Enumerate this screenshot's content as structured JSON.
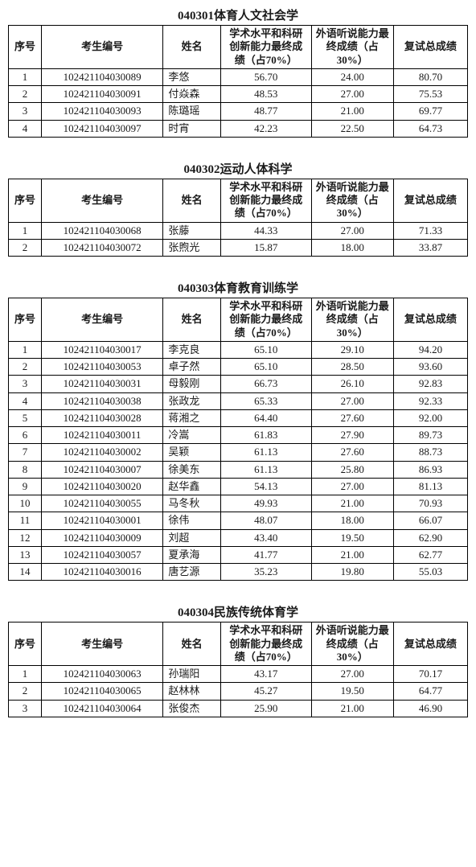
{
  "headers": {
    "idx": "序号",
    "id": "考生编号",
    "name": "姓名",
    "s1_a": "学术水平和科研创新能力最终成绩（占70%）",
    "s1_b": "学术水平和科研创新能力最终成绩（占70%）",
    "s2_a": "外语听说能力最终成绩（占30%）",
    "s2_b": "外语听说能力最终成绩（占30%）",
    "s3": "复试总成绩"
  },
  "sections": [
    {
      "title": "040301体育人文社会学",
      "header_variant": "a",
      "rows": [
        {
          "idx": "1",
          "id": "102421104030089",
          "name": "李悠",
          "s1": "56.70",
          "s2": "24.00",
          "s3": "80.70"
        },
        {
          "idx": "2",
          "id": "102421104030091",
          "name": "付焱森",
          "s1": "48.53",
          "s2": "27.00",
          "s3": "75.53"
        },
        {
          "idx": "3",
          "id": "102421104030093",
          "name": "陈璐瑶",
          "s1": "48.77",
          "s2": "21.00",
          "s3": "69.77"
        },
        {
          "idx": "4",
          "id": "102421104030097",
          "name": "时宵",
          "s1": "42.23",
          "s2": "22.50",
          "s3": "64.73"
        }
      ]
    },
    {
      "title": "040302运动人体科学",
      "header_variant": "a",
      "rows": [
        {
          "idx": "1",
          "id": "102421104030068",
          "name": "张藤",
          "s1": "44.33",
          "s2": "27.00",
          "s3": "71.33"
        },
        {
          "idx": "2",
          "id": "102421104030072",
          "name": "张煦光",
          "s1": "15.87",
          "s2": "18.00",
          "s3": "33.87"
        }
      ]
    },
    {
      "title": "040303体育教育训练学",
      "header_variant": "b",
      "rows": [
        {
          "idx": "1",
          "id": "102421104030017",
          "name": "李克良",
          "s1": "65.10",
          "s2": "29.10",
          "s3": "94.20"
        },
        {
          "idx": "2",
          "id": "102421104030053",
          "name": "卓子然",
          "s1": "65.10",
          "s2": "28.50",
          "s3": "93.60"
        },
        {
          "idx": "3",
          "id": "102421104030031",
          "name": "母毅刚",
          "s1": "66.73",
          "s2": "26.10",
          "s3": "92.83"
        },
        {
          "idx": "4",
          "id": "102421104030038",
          "name": "张政龙",
          "s1": "65.33",
          "s2": "27.00",
          "s3": "92.33"
        },
        {
          "idx": "5",
          "id": "102421104030028",
          "name": "蒋湘之",
          "s1": "64.40",
          "s2": "27.60",
          "s3": "92.00"
        },
        {
          "idx": "6",
          "id": "102421104030011",
          "name": "冷嵩",
          "s1": "61.83",
          "s2": "27.90",
          "s3": "89.73"
        },
        {
          "idx": "7",
          "id": "102421104030002",
          "name": "吴颖",
          "s1": "61.13",
          "s2": "27.60",
          "s3": "88.73"
        },
        {
          "idx": "8",
          "id": "102421104030007",
          "name": "徐美东",
          "s1": "61.13",
          "s2": "25.80",
          "s3": "86.93"
        },
        {
          "idx": "9",
          "id": "102421104030020",
          "name": "赵华鑫",
          "s1": "54.13",
          "s2": "27.00",
          "s3": "81.13"
        },
        {
          "idx": "10",
          "id": "102421104030055",
          "name": "马冬秋",
          "s1": "49.93",
          "s2": "21.00",
          "s3": "70.93"
        },
        {
          "idx": "11",
          "id": "102421104030001",
          "name": "徐伟",
          "s1": "48.07",
          "s2": "18.00",
          "s3": "66.07"
        },
        {
          "idx": "12",
          "id": "102421104030009",
          "name": "刘超",
          "s1": "43.40",
          "s2": "19.50",
          "s3": "62.90"
        },
        {
          "idx": "13",
          "id": "102421104030057",
          "name": "夏承海",
          "s1": "41.77",
          "s2": "21.00",
          "s3": "62.77"
        },
        {
          "idx": "14",
          "id": "102421104030016",
          "name": "唐艺源",
          "s1": "35.23",
          "s2": "19.80",
          "s3": "55.03"
        }
      ]
    },
    {
      "title": "040304民族传统体育学",
      "header_variant": "b",
      "rows": [
        {
          "idx": "1",
          "id": "102421104030063",
          "name": "孙瑞阳",
          "s1": "43.17",
          "s2": "27.00",
          "s3": "70.17"
        },
        {
          "idx": "2",
          "id": "102421104030065",
          "name": "赵林林",
          "s1": "45.27",
          "s2": "19.50",
          "s3": "64.77"
        },
        {
          "idx": "3",
          "id": "102421104030064",
          "name": "张俊杰",
          "s1": "25.90",
          "s2": "21.00",
          "s3": "46.90"
        }
      ]
    }
  ]
}
